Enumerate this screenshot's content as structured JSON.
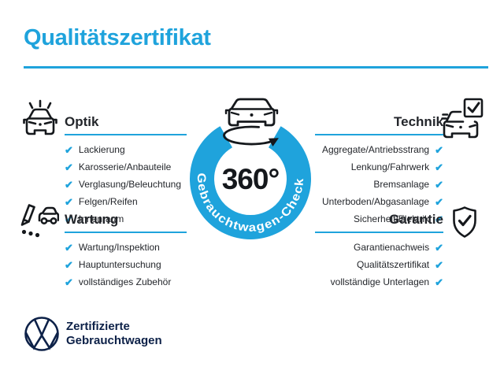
{
  "title": "Qualitätszertifikat",
  "colors": {
    "accent_blue": "#1FA3DC",
    "text_dark": "#23262B",
    "vw_navy": "#0D2148",
    "icon_black": "#15181C"
  },
  "center": {
    "value": "360°",
    "ring_label": "Gebrauchtwagen-Check"
  },
  "check_glyph": "✔",
  "sections": [
    {
      "id": "optik",
      "label": "Optik",
      "side": "left",
      "icon": "car-front-shine-icon",
      "items": [
        "Lackierung",
        "Karosserie/Anbauteile",
        "Verglasung/Beleuchtung",
        "Felgen/Reifen",
        "Innenraum"
      ]
    },
    {
      "id": "technik",
      "label": "Technik",
      "side": "right",
      "icon": "car-checkbox-icon",
      "items": [
        "Aggregate/Antriebsstrang",
        "Lenkung/Fahrwerk",
        "Bremsanlage",
        "Unterboden/Abgasanlage",
        "Sicherheit/Elektrik"
      ]
    },
    {
      "id": "wartung",
      "label": "Wartung",
      "side": "left",
      "icon": "pencil-checklist-car-icon",
      "items": [
        "Wartung/Inspektion",
        "Hauptuntersuchung",
        "vollständiges Zubehör"
      ]
    },
    {
      "id": "garantie",
      "label": "Garantie",
      "side": "right",
      "icon": "shield-check-icon",
      "items": [
        "Garantienachweis",
        "Qualitätszertifikat",
        "vollständige Unterlagen"
      ]
    }
  ],
  "footer": {
    "line1": "Zertifizierte",
    "line2": "Gebrauchtwagen"
  }
}
